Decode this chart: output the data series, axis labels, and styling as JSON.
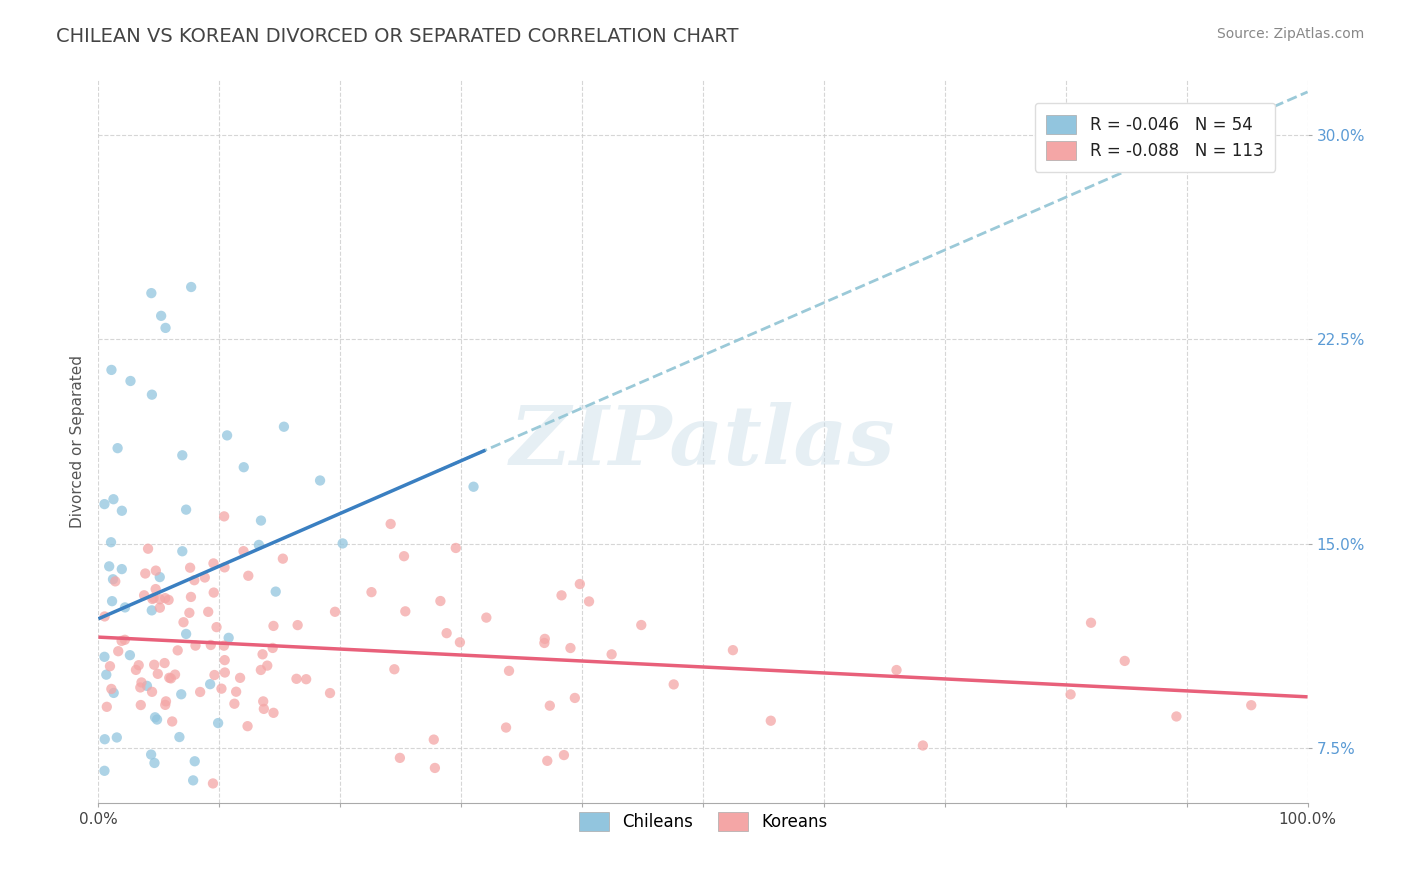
{
  "title": "CHILEAN VS KOREAN DIVORCED OR SEPARATED CORRELATION CHART",
  "source": "Source: ZipAtlas.com",
  "ylabel": "Divorced or Separated",
  "xlim": [
    0,
    1.0
  ],
  "ylim": [
    0.055,
    0.32
  ],
  "yticks": [
    0.075,
    0.15,
    0.225,
    0.3
  ],
  "ytick_labels": [
    "7.5%",
    "15.0%",
    "22.5%",
    "30.0%"
  ],
  "xtick_left": 0.0,
  "xtick_right": 1.0,
  "xtick_label_left": "0.0%",
  "xtick_label_right": "100.0%",
  "chilean_color": "#92c5de",
  "korean_color": "#f4a6a6",
  "chilean_line_color": "#3a7fc1",
  "korean_line_color": "#e8607a",
  "dashed_line_color": "#90c4d4",
  "legend_r_chilean": "-0.046",
  "legend_n_chilean": "54",
  "legend_r_korean": "-0.088",
  "legend_n_korean": "113",
  "legend_r_color": "#e05050",
  "legend_n_color": "#3a7fc1",
  "chilean_label": "Chileans",
  "korean_label": "Koreans",
  "watermark": "ZIPatlas",
  "title_color": "#444444",
  "title_fontsize": 14,
  "source_fontsize": 10,
  "source_color": "#888888",
  "ytick_color": "#5b9bd5",
  "xtick_color": "#444444",
  "grid_color": "#cccccc",
  "chilean_scatter_seed": 101,
  "korean_scatter_seed": 202
}
